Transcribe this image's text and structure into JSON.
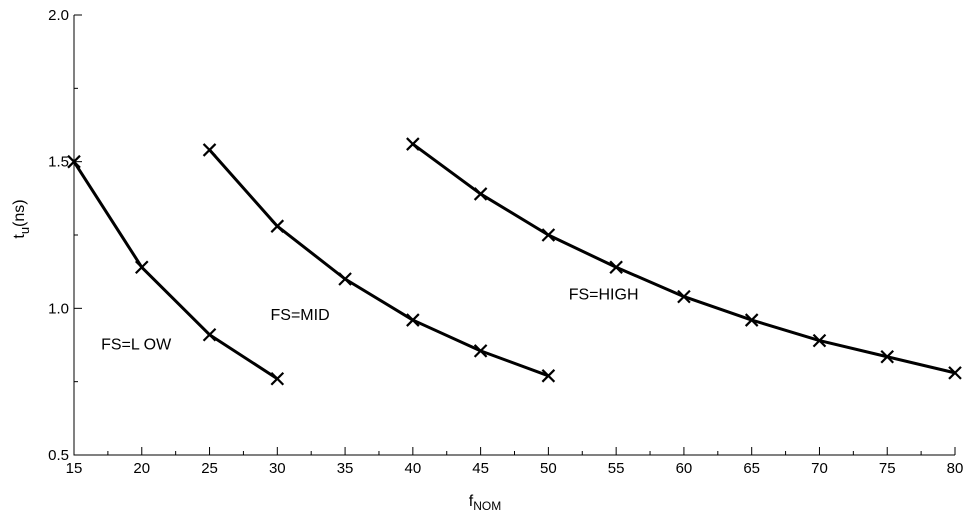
{
  "chart_data": {
    "type": "line",
    "title": "",
    "xlabel": {
      "main": "f",
      "sub": "NOM"
    },
    "ylabel": {
      "main": "t",
      "sub": "u",
      "rest": "(ns)"
    },
    "xlim": [
      15,
      80
    ],
    "ylim": [
      0.5,
      2.0
    ],
    "x_major_ticks": [
      15,
      20,
      25,
      30,
      35,
      40,
      45,
      50,
      55,
      60,
      65,
      70,
      75,
      80
    ],
    "x_tick_labels": [
      "15",
      "20",
      "25",
      "30",
      "35",
      "40",
      "45",
      "50",
      "55",
      "60",
      "65",
      "70",
      "75",
      "80"
    ],
    "y_major_ticks": [
      0.5,
      1.0,
      1.5,
      2.0
    ],
    "y_tick_labels": [
      "0.5",
      "1.0",
      "1.5",
      "2.0"
    ],
    "grid": false,
    "marker": "x",
    "series": [
      {
        "x": [
          15,
          20,
          25,
          30
        ],
        "y": [
          1.5,
          1.14,
          0.91,
          0.76
        ]
      },
      {
        "x": [
          25,
          30,
          35,
          40,
          45,
          50
        ],
        "y": [
          1.54,
          1.28,
          1.1,
          0.96,
          0.855,
          0.77
        ]
      },
      {
        "x": [
          40,
          45,
          50,
          55,
          60,
          65,
          70,
          75,
          80
        ],
        "y": [
          1.56,
          1.39,
          1.25,
          1.14,
          1.04,
          0.96,
          0.89,
          0.835,
          0.78
        ]
      }
    ],
    "annotations": [
      {
        "text": "FS=L OW",
        "x": 17.0,
        "y": 0.86
      },
      {
        "text": "FS=MID",
        "x": 29.5,
        "y": 0.96
      },
      {
        "text": "FS=HIGH",
        "x": 51.5,
        "y": 1.03
      }
    ]
  }
}
